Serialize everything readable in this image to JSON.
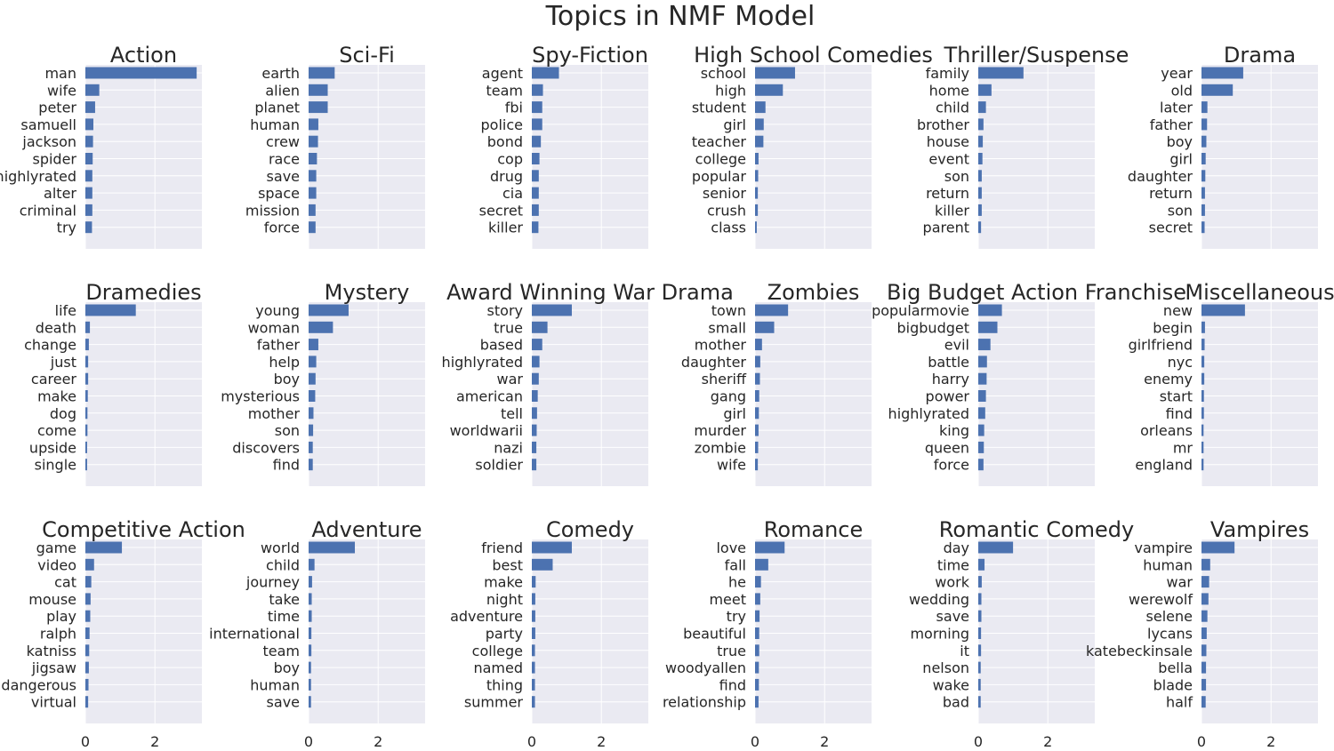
{
  "chart_data": {
    "type": "bar",
    "title": "Topics in NMF Model",
    "orientation": "horizontal",
    "xlim": [
      0,
      3.35
    ],
    "xticks": [
      0,
      2
    ],
    "grid": true,
    "colors": {
      "bar": "#4c72b0",
      "panel_bg": "#eaeaf2",
      "grid": "#ffffff",
      "text": "#262626"
    },
    "panels": [
      {
        "title": "Action",
        "categories": [
          "man",
          "wife",
          "peter",
          "samuell",
          "jackson",
          "spider",
          "highlyrated",
          "alter",
          "criminal",
          "try"
        ],
        "values": [
          3.2,
          0.4,
          0.28,
          0.23,
          0.22,
          0.21,
          0.2,
          0.2,
          0.2,
          0.19
        ]
      },
      {
        "title": "Sci-Fi",
        "categories": [
          "earth",
          "alien",
          "planet",
          "human",
          "crew",
          "race",
          "save",
          "space",
          "mission",
          "force"
        ],
        "values": [
          0.75,
          0.55,
          0.55,
          0.28,
          0.27,
          0.24,
          0.22,
          0.22,
          0.2,
          0.2
        ]
      },
      {
        "title": "Spy-Fiction",
        "categories": [
          "agent",
          "team",
          "fbi",
          "police",
          "bond",
          "cop",
          "drug",
          "cia",
          "secret",
          "killer"
        ],
        "values": [
          0.78,
          0.32,
          0.3,
          0.3,
          0.26,
          0.22,
          0.2,
          0.2,
          0.2,
          0.19
        ]
      },
      {
        "title": "High School Comedies",
        "categories": [
          "school",
          "high",
          "student",
          "girl",
          "teacher",
          "college",
          "popular",
          "senior",
          "crush",
          "class"
        ],
        "values": [
          1.15,
          0.8,
          0.3,
          0.25,
          0.24,
          0.1,
          0.09,
          0.08,
          0.08,
          0.05
        ]
      },
      {
        "title": "Thriller/Suspense",
        "categories": [
          "family",
          "home",
          "child",
          "brother",
          "house",
          "event",
          "son",
          "return",
          "killer",
          "parent"
        ],
        "values": [
          1.3,
          0.38,
          0.22,
          0.15,
          0.13,
          0.12,
          0.1,
          0.1,
          0.1,
          0.08
        ]
      },
      {
        "title": "Drama",
        "categories": [
          "year",
          "old",
          "later",
          "father",
          "boy",
          "girl",
          "daughter",
          "return",
          "son",
          "secret"
        ],
        "values": [
          1.2,
          0.9,
          0.17,
          0.16,
          0.14,
          0.12,
          0.11,
          0.1,
          0.1,
          0.09
        ]
      },
      {
        "title": "Dramedies",
        "categories": [
          "life",
          "death",
          "change",
          "just",
          "career",
          "make",
          "dog",
          "come",
          "upside",
          "single"
        ],
        "values": [
          1.45,
          0.13,
          0.1,
          0.08,
          0.08,
          0.07,
          0.06,
          0.06,
          0.05,
          0.05
        ]
      },
      {
        "title": "Mystery",
        "categories": [
          "young",
          "woman",
          "father",
          "help",
          "boy",
          "mysterious",
          "mother",
          "son",
          "discovers",
          "find"
        ],
        "values": [
          1.15,
          0.7,
          0.28,
          0.22,
          0.2,
          0.19,
          0.14,
          0.13,
          0.12,
          0.12
        ]
      },
      {
        "title": "Award Winning War Drama",
        "categories": [
          "story",
          "true",
          "based",
          "highlyrated",
          "war",
          "american",
          "tell",
          "worldwarii",
          "nazi",
          "soldier"
        ],
        "values": [
          1.15,
          0.45,
          0.3,
          0.22,
          0.2,
          0.17,
          0.15,
          0.14,
          0.13,
          0.13
        ]
      },
      {
        "title": "Zombies",
        "categories": [
          "town",
          "small",
          "mother",
          "daughter",
          "sheriff",
          "gang",
          "girl",
          "murder",
          "zombie",
          "wife"
        ],
        "values": [
          0.95,
          0.55,
          0.2,
          0.15,
          0.14,
          0.12,
          0.11,
          0.1,
          0.09,
          0.08
        ]
      },
      {
        "title": "Big Budget Action Franchise",
        "categories": [
          "popularmovie",
          "bigbudget",
          "evil",
          "battle",
          "harry",
          "power",
          "highlyrated",
          "king",
          "queen",
          "force"
        ],
        "values": [
          0.68,
          0.55,
          0.35,
          0.25,
          0.24,
          0.22,
          0.2,
          0.17,
          0.16,
          0.15
        ]
      },
      {
        "title": "Miscellaneous",
        "categories": [
          "new",
          "begin",
          "girlfriend",
          "nyc",
          "enemy",
          "start",
          "find",
          "orleans",
          "mr",
          "england"
        ],
        "values": [
          1.25,
          0.1,
          0.09,
          0.08,
          0.08,
          0.07,
          0.07,
          0.06,
          0.06,
          0.06
        ]
      },
      {
        "title": "Competitive Action",
        "categories": [
          "game",
          "video",
          "cat",
          "mouse",
          "play",
          "ralph",
          "katniss",
          "jigsaw",
          "dangerous",
          "virtual"
        ],
        "values": [
          1.05,
          0.25,
          0.17,
          0.15,
          0.14,
          0.12,
          0.11,
          0.1,
          0.09,
          0.08
        ]
      },
      {
        "title": "Adventure",
        "categories": [
          "world",
          "child",
          "journey",
          "take",
          "time",
          "international",
          "team",
          "boy",
          "human",
          "save"
        ],
        "values": [
          1.33,
          0.17,
          0.1,
          0.09,
          0.09,
          0.08,
          0.08,
          0.07,
          0.07,
          0.07
        ]
      },
      {
        "title": "Comedy",
        "categories": [
          "friend",
          "best",
          "make",
          "night",
          "adventure",
          "party",
          "college",
          "named",
          "thing",
          "summer"
        ],
        "values": [
          1.15,
          0.6,
          0.11,
          0.1,
          0.1,
          0.1,
          0.09,
          0.09,
          0.09,
          0.09
        ]
      },
      {
        "title": "Romance",
        "categories": [
          "love",
          "fall",
          "he",
          "meet",
          "try",
          "beautiful",
          "true",
          "woodyallen",
          "find",
          "relationship"
        ],
        "values": [
          0.85,
          0.38,
          0.17,
          0.15,
          0.13,
          0.12,
          0.12,
          0.11,
          0.11,
          0.1
        ]
      },
      {
        "title": "Romantic Comedy",
        "categories": [
          "day",
          "time",
          "work",
          "wedding",
          "save",
          "morning",
          "it",
          "nelson",
          "wake",
          "bad"
        ],
        "values": [
          1.0,
          0.18,
          0.1,
          0.09,
          0.09,
          0.08,
          0.08,
          0.07,
          0.07,
          0.07
        ]
      },
      {
        "title": "Vampires",
        "categories": [
          "vampire",
          "human",
          "war",
          "werewolf",
          "selene",
          "lycans",
          "katebeckinsale",
          "bella",
          "blade",
          "half"
        ],
        "values": [
          0.95,
          0.25,
          0.22,
          0.2,
          0.17,
          0.15,
          0.14,
          0.13,
          0.13,
          0.12
        ]
      }
    ]
  }
}
